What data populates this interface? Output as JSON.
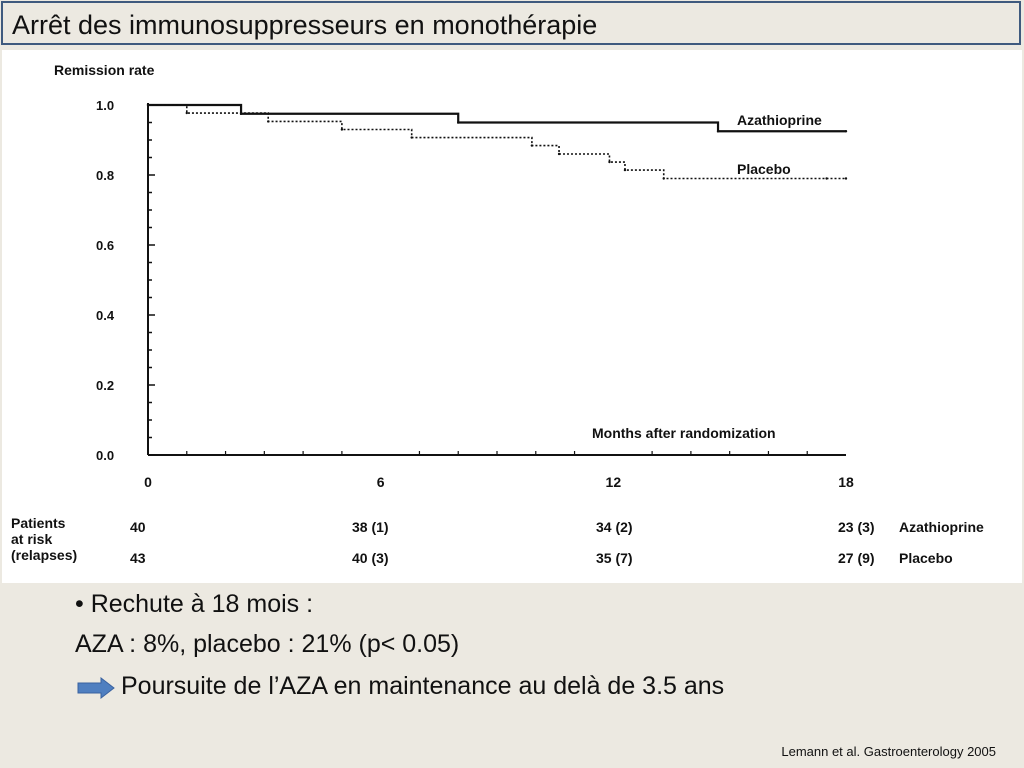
{
  "title": "Arrêt des immunosuppresseurs en monothérapie",
  "chart_data": {
    "type": "line",
    "ylabel": "Remission rate",
    "xlabel": "Months after randomization",
    "xlim": [
      0,
      18
    ],
    "ylim": [
      0,
      1.0
    ],
    "x_ticks": [
      "0",
      "6",
      "12",
      "18"
    ],
    "y_ticks": [
      "0.0",
      "0.2",
      "0.4",
      "0.6",
      "0.8",
      "1.0"
    ],
    "x_tick_values": [
      0,
      6,
      12,
      18
    ],
    "y_tick_values": [
      0,
      0.2,
      0.4,
      0.6,
      0.8,
      1.0
    ],
    "series": [
      {
        "name": "Azathioprine",
        "style": "solid",
        "x": [
          0,
          2.4,
          8.0,
          14.7,
          18
        ],
        "y": [
          1.0,
          0.975,
          0.95,
          0.925,
          0.925
        ]
      },
      {
        "name": "Placebo",
        "style": "dotted",
        "x": [
          0,
          1.0,
          3.1,
          5.0,
          6.8,
          9.9,
          10.6,
          11.9,
          12.3,
          13.3,
          17.5,
          18
        ],
        "y": [
          1.0,
          0.977,
          0.953,
          0.93,
          0.907,
          0.884,
          0.86,
          0.837,
          0.814,
          0.79,
          0.79,
          0.79
        ]
      }
    ]
  },
  "patients_at_risk": {
    "label_lines": [
      "Patients",
      "at risk",
      "(relapses)"
    ],
    "rows": [
      {
        "name": "Azathioprine",
        "values": [
          "40",
          "38 (1)",
          "34 (2)",
          "23 (3)"
        ]
      },
      {
        "name": "Placebo",
        "values": [
          "43",
          "40 (3)",
          "35 (7)",
          "27 (9)"
        ]
      }
    ]
  },
  "text": {
    "bullet": "• Rechute à 18 mois :",
    "line2": "AZA : 8%, placebo : 21% (p< 0.05)",
    "line3": "Poursuite de l’AZA en maintenance au delà de 3.5 ans"
  },
  "citation": "Lemann et al. Gastroenterology 2005",
  "colors": {
    "title_border": "#3f5a7e",
    "arrow": "#4f7fc0"
  }
}
